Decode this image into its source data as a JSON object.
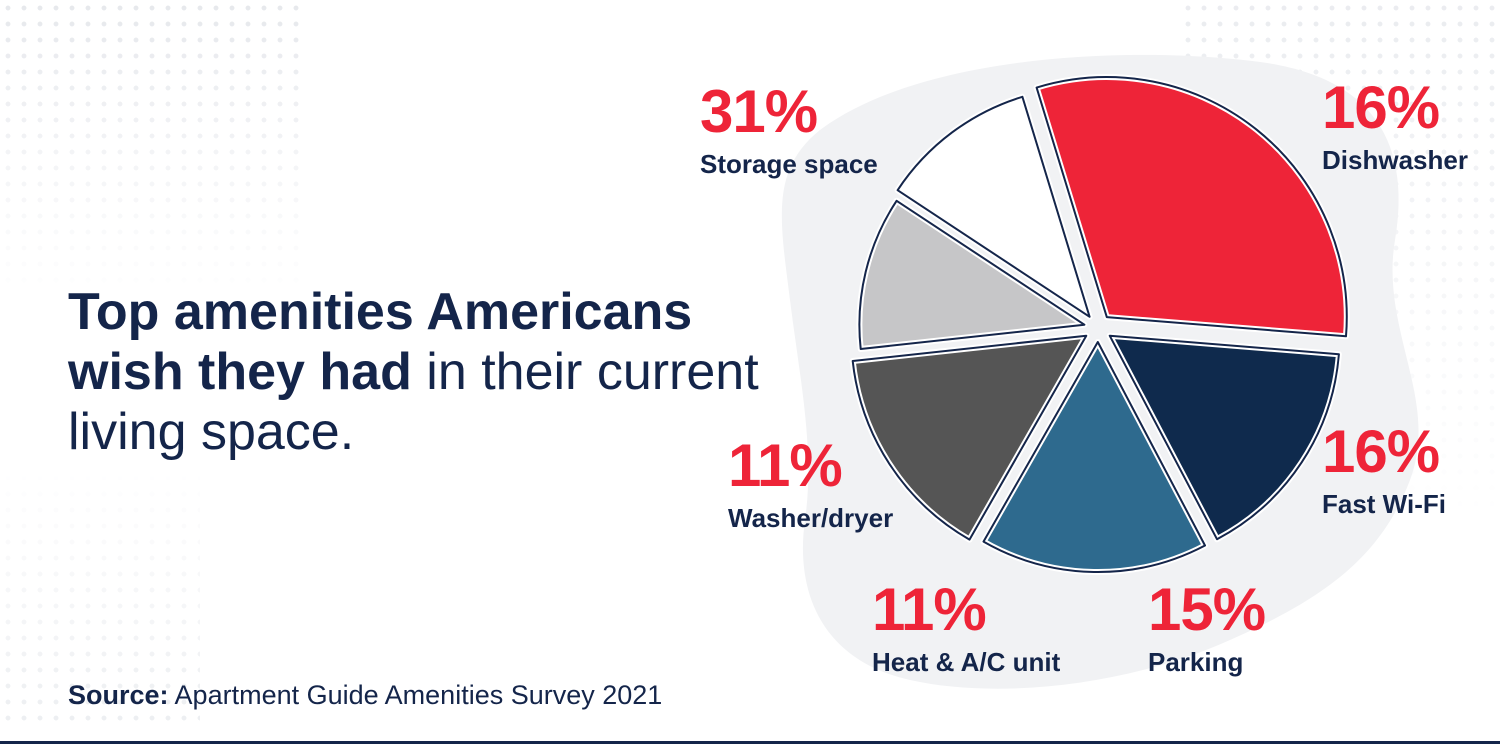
{
  "headline": {
    "bold": "Top amenities Americans wish they had",
    "rest": " in their current living space."
  },
  "source": {
    "label": "Source:",
    "text": " Apartment Guide Amenities Survey 2021"
  },
  "colors": {
    "navy": "#14254a",
    "red": "#ee2438",
    "blob": "#f1f2f4"
  },
  "chart_data": {
    "type": "pie",
    "title": "",
    "unit": "%",
    "slices": [
      {
        "label": "Storage space",
        "value": 31,
        "display": "31%",
        "color": "#ee2438"
      },
      {
        "label": "Dishwasher",
        "value": 16,
        "display": "16%",
        "color": "#0f2a4d"
      },
      {
        "label": "Fast Wi-Fi",
        "value": 16,
        "display": "16%",
        "color": "#2e6a8e"
      },
      {
        "label": "Parking",
        "value": 15,
        "display": "15%",
        "color": "#555555"
      },
      {
        "label": "Heat & A/C unit",
        "value": 11,
        "display": "11%",
        "color": "#c6c6c8"
      },
      {
        "label": "Washer/dryer",
        "value": 11,
        "display": "11%",
        "color": "#ffffff"
      }
    ]
  }
}
